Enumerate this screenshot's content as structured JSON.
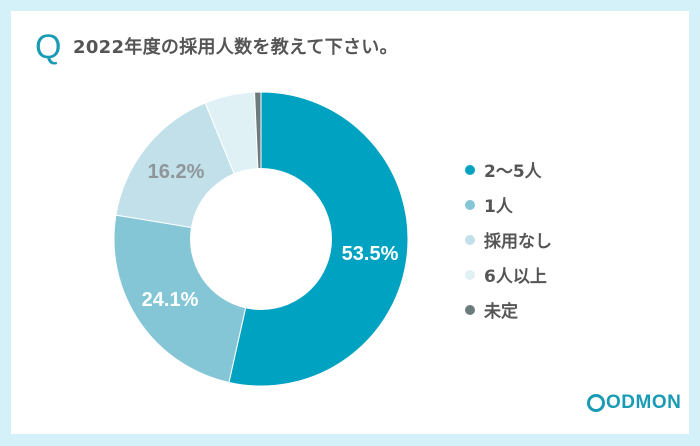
{
  "question": {
    "marker": "Q",
    "title": "2022年度の採用人数を教えて下さい。"
  },
  "legend": [
    {
      "label": "2〜5人",
      "color": "#00a2c2"
    },
    {
      "label": "1人",
      "color": "#84c5d6"
    },
    {
      "label": "採用なし",
      "color": "#c1e0ea"
    },
    {
      "label": "6人以上",
      "color": "#e0f1f6"
    },
    {
      "label": "未定",
      "color": "#6d7b7d"
    }
  ],
  "labels": {
    "slice1": "53.5%",
    "slice2": "24.1%",
    "slice3": "16.2%"
  },
  "brand": {
    "logo_text": "ODMON",
    "accent": "#1a9bb5"
  },
  "chart_data": {
    "type": "pie",
    "variant": "donut",
    "title": "2022年度の採用人数を教えて下さい。",
    "categories": [
      "2〜5人",
      "1人",
      "採用なし",
      "6人以上",
      "未定"
    ],
    "values": [
      53.5,
      24.1,
      16.2,
      5.5,
      0.7
    ],
    "value_labels": [
      "53.5%",
      "24.1%",
      "16.2%",
      "",
      ""
    ],
    "colors": [
      "#00a2c2",
      "#84c5d6",
      "#c1e0ea",
      "#e0f1f6",
      "#6d7b7d"
    ],
    "legend_position": "right",
    "unit": "%"
  }
}
